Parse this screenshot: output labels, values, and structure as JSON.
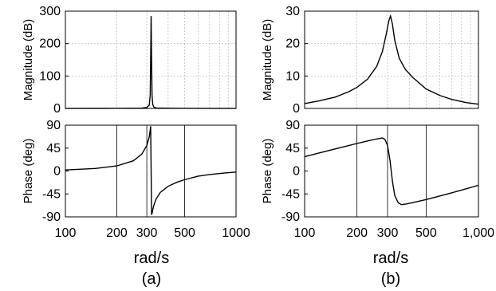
{
  "chart_data": [
    {
      "type": "line",
      "panel": "a",
      "caption": "(a)",
      "xlabel": "rad/s",
      "x_scale": "log",
      "xlim": [
        100,
        1000
      ],
      "x_ticks": [
        100,
        200,
        300,
        500,
        1000
      ],
      "x_tick_labels": [
        "100",
        "200",
        "300",
        "500",
        "1000"
      ],
      "magnitude": {
        "ylabel": "Magnitude (dB)",
        "ylim": [
          0,
          300
        ],
        "y_ticks": [
          0,
          100,
          200,
          300
        ],
        "y_tick_labels": [
          "0",
          "100",
          "200",
          "300"
        ],
        "x": [
          100,
          200,
          280,
          300,
          310,
          314,
          316,
          318,
          320,
          322,
          325,
          330,
          340,
          400,
          500,
          700,
          1000
        ],
        "values": [
          0.2,
          0.4,
          1.0,
          3.0,
          10.0,
          40.0,
          150.0,
          285.0,
          150.0,
          40.0,
          12.0,
          4.0,
          1.5,
          0.6,
          0.4,
          0.2,
          0.1
        ]
      },
      "phase": {
        "ylabel": "Phase (deg)",
        "ylim": [
          -90,
          90
        ],
        "y_ticks": [
          -90,
          -45,
          0,
          45,
          90
        ],
        "y_tick_labels": [
          "-90",
          "-45",
          "0",
          "45",
          "90"
        ],
        "x": [
          100,
          150,
          200,
          250,
          280,
          300,
          310,
          314,
          316,
          318,
          320,
          322,
          325,
          330,
          340,
          360,
          400,
          450,
          500,
          600,
          700,
          850,
          1000
        ],
        "values": [
          2,
          5,
          10,
          20,
          33,
          50,
          67,
          80,
          88,
          0,
          -86,
          -83,
          -76,
          -67,
          -55,
          -42,
          -30,
          -22,
          -17,
          -10,
          -7,
          -4,
          -2
        ]
      }
    },
    {
      "type": "line",
      "panel": "b",
      "caption": "(b)",
      "xlabel": "rad/s",
      "x_scale": "log",
      "xlim": [
        100,
        1000
      ],
      "x_ticks": [
        100,
        200,
        300,
        500,
        1000
      ],
      "x_tick_labels": [
        "100",
        "200",
        "300",
        "500",
        "1,000"
      ],
      "magnitude": {
        "ylabel": "Magnitude (dB)",
        "ylim": [
          0,
          30
        ],
        "y_ticks": [
          0,
          10,
          20,
          30
        ],
        "y_tick_labels": [
          "0",
          "10",
          "20",
          "30"
        ],
        "x": [
          100,
          120,
          150,
          180,
          200,
          230,
          260,
          280,
          295,
          305,
          312,
          320,
          330,
          350,
          380,
          420,
          500,
          600,
          700,
          850,
          1000
        ],
        "values": [
          1.5,
          2.3,
          3.5,
          5.2,
          6.5,
          9.0,
          13.0,
          17.5,
          23.0,
          27.0,
          28.5,
          26.0,
          21.0,
          15.5,
          12.0,
          9.5,
          6.0,
          4.0,
          2.8,
          1.8,
          1.3
        ]
      },
      "phase": {
        "ylabel": "Phase (deg)",
        "ylim": [
          -90,
          90
        ],
        "y_ticks": [
          -90,
          -45,
          0,
          45,
          90
        ],
        "y_tick_labels": [
          "-90",
          "-45",
          "0",
          "45",
          "90"
        ],
        "x": [
          100,
          130,
          170,
          200,
          230,
          260,
          280,
          290,
          300,
          310,
          320,
          330,
          345,
          360,
          380,
          420,
          500,
          600,
          700,
          850,
          1000
        ],
        "values": [
          28,
          38,
          48,
          54,
          59,
          63,
          65,
          62,
          50,
          20,
          -20,
          -48,
          -62,
          -66,
          -65,
          -62,
          -56,
          -49,
          -43,
          -35,
          -28
        ]
      }
    }
  ]
}
